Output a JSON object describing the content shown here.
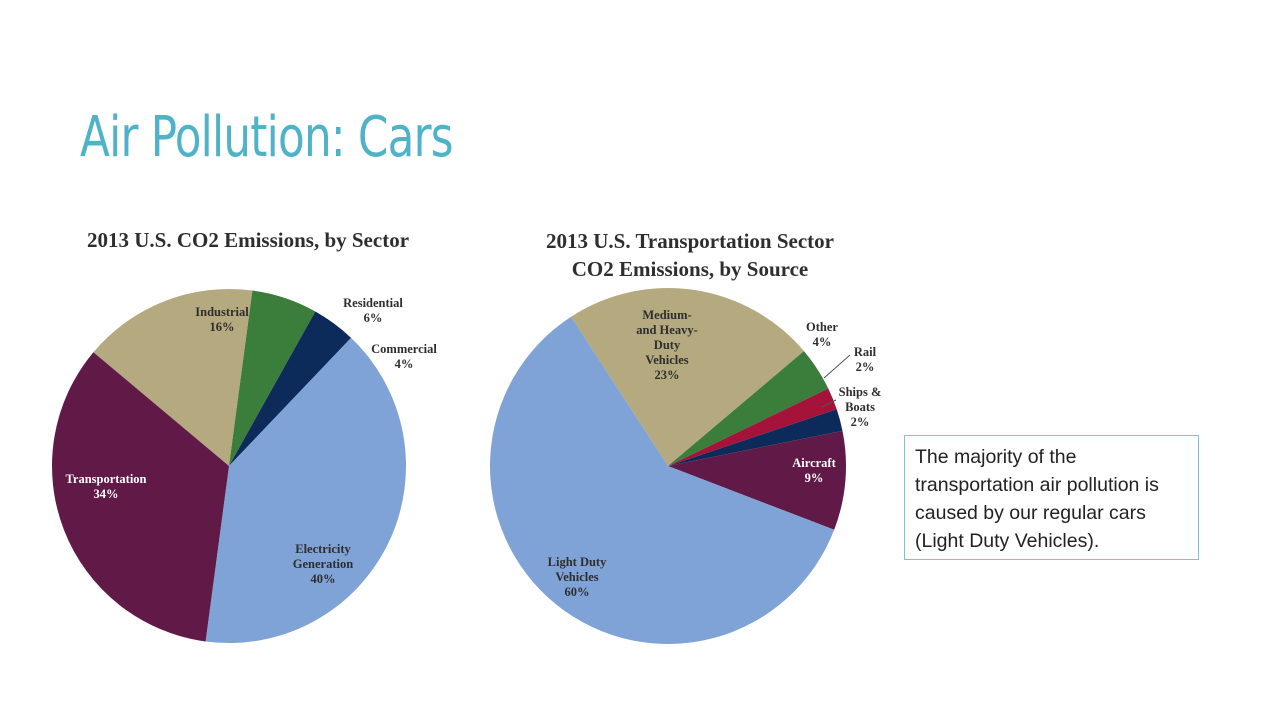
{
  "slide": {
    "title": "Air Pollution: Cars",
    "note": "The majority of the transportation air pollution is caused by our regular cars (Light Duty Vehicles)."
  },
  "colors": {
    "title": "#4fb3c8",
    "note_border": "#7fc4d4"
  },
  "chart_data": [
    {
      "type": "pie",
      "title": "2013 U.S. CO2 Emissions, by Sector",
      "categories": [
        "Industrial",
        "Residential",
        "Commercial",
        "Electricity Generation",
        "Transportation"
      ],
      "values": [
        16,
        6,
        4,
        40,
        34
      ],
      "value_labels": [
        "16%",
        "6%",
        "4%",
        "40%",
        "34%"
      ],
      "colors": [
        "#b5a97f",
        "#3b7d3a",
        "#0c2a5a",
        "#7fa3d6",
        "#611a47"
      ]
    },
    {
      "type": "pie",
      "title": "2013 U.S. Transportation Sector CO2 Emissions, by Source",
      "title_lines": [
        "2013 U.S. Transportation Sector",
        "CO2 Emissions, by Source"
      ],
      "categories": [
        "Medium- and Heavy- Duty Vehicles",
        "Other",
        "Rail",
        "Ships & Boats",
        "Aircraft",
        "Light Duty Vehicles"
      ],
      "values": [
        23,
        4,
        2,
        2,
        9,
        60
      ],
      "value_labels": [
        "23%",
        "4%",
        "2%",
        "2%",
        "9%",
        "60%"
      ],
      "colors": [
        "#b5a97f",
        "#3b7d3a",
        "#a5133a",
        "#0c2a5a",
        "#611a47",
        "#7fa3d6"
      ]
    }
  ]
}
